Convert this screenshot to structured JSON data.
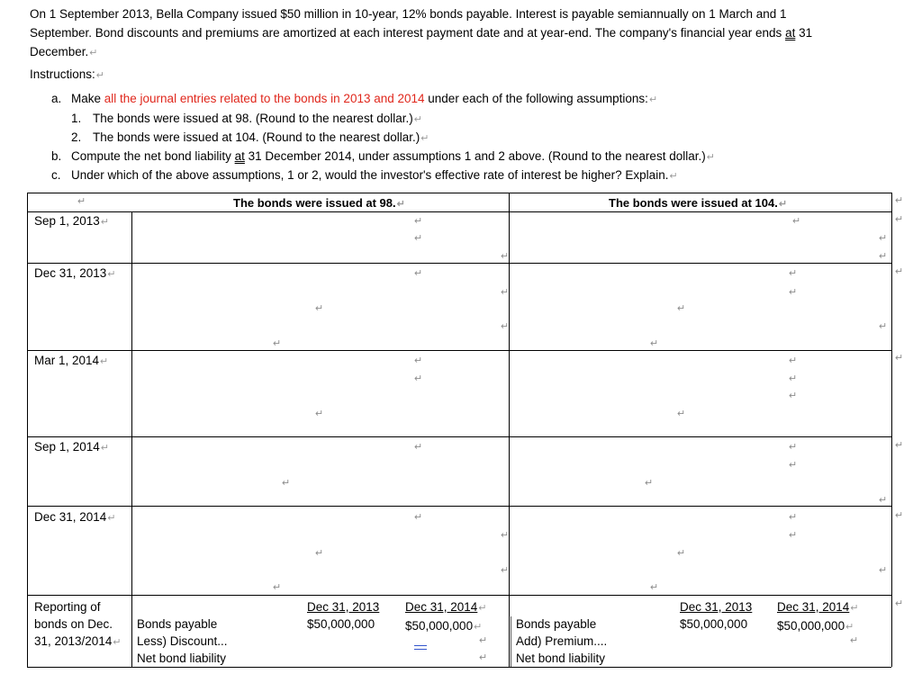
{
  "problem": {
    "line1": "On 1 September 2013, Bella Company issued $50 million in 10-year, 12% bonds payable. Interest is payable semiannually on 1 March and 1",
    "line2": "September. Bond discounts and premiums are amortized at each interest payment date and at year-end. The company's financial year ends ",
    "at": "at",
    "line2_end": " 31",
    "line3": "December."
  },
  "instructions_label": "Instructions:",
  "item_a": {
    "letter": "a.",
    "prefix": "Make ",
    "highlight": "all the journal entries related to the bonds in 2013 and 2014",
    "suffix": " under each of the following assumptions:"
  },
  "sub1": {
    "num": "1.",
    "text": "The bonds were issued at 98. (Round to the nearest dollar.)"
  },
  "sub2": {
    "num": "2.",
    "text": "The bonds were issued at 104. (Round to the nearest dollar.)"
  },
  "item_b": {
    "letter": "b.",
    "prefix": "Compute the net bond liability ",
    "at": "at",
    "suffix": " 31 December 2014, under assumptions 1 and 2 above. (Round to the nearest dollar.)"
  },
  "item_c": {
    "letter": "c.",
    "text": "Under which of the above assumptions, 1 or 2, would the investor's effective rate of interest be higher? Explain."
  },
  "paragraph_mark": "↵",
  "table": {
    "header_98": "The bonds were issued at 98.",
    "header_104": "The bonds were issued at 104.",
    "dates": [
      "Sep 1, 2013",
      "Dec 31, 2013",
      "Mar 1, 2014",
      "Sep 1, 2014",
      "Dec 31, 2014"
    ],
    "reporting_label_lines": [
      "Reporting of",
      "bonds on Dec.",
      "31, 2013/2014"
    ],
    "left_block": {
      "rows": [
        "Bonds payable",
        "Less) Discount...",
        "Net bond liability"
      ],
      "col1_header": "Dec 31, 2013",
      "col1_value": "$50,000,000",
      "col2_header": "Dec 31, 2014",
      "col2_value": "$50,000,000"
    },
    "right_block": {
      "rows": [
        "Bonds payable",
        "Add) Premium....",
        "Net bond liability"
      ],
      "col1_header": "Dec 31, 2013",
      "col1_value": "$50,000,000",
      "col2_header": "Dec 31, 2014",
      "col2_value": "$50,000,000"
    }
  }
}
